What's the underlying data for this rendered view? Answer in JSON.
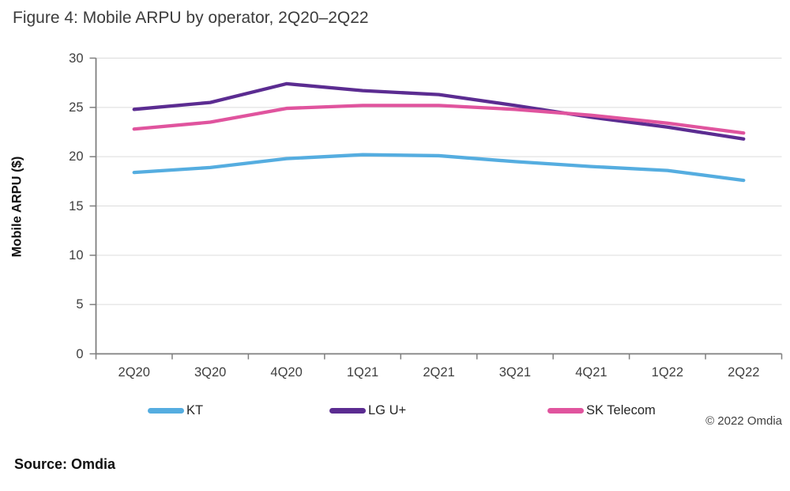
{
  "title": "Figure 4: Mobile ARPU by operator, 2Q20–2Q22",
  "source": "Source: Omdia",
  "copyright": "© 2022 Omdia",
  "colors": {
    "kt": "#55ADE0",
    "lg_uplus": "#5B2C91",
    "sk_telecom": "#E0549E",
    "grid": "#DCDCDC",
    "axis": "#7F7F7F",
    "tick_text": "#3f3f3f"
  },
  "chart_data": {
    "type": "line",
    "title": "Figure 4: Mobile ARPU by operator, 2Q20–2Q22",
    "categories": [
      "2Q20",
      "3Q20",
      "4Q20",
      "1Q21",
      "2Q21",
      "3Q21",
      "4Q21",
      "1Q22",
      "2Q22"
    ],
    "series": [
      {
        "name": "KT",
        "color": "#55ADE0",
        "values": [
          18.4,
          18.9,
          19.8,
          20.2,
          20.1,
          19.5,
          19.0,
          18.6,
          17.6
        ]
      },
      {
        "name": "LG U+",
        "color": "#5B2C91",
        "values": [
          24.8,
          25.5,
          27.4,
          26.7,
          26.3,
          25.2,
          24.0,
          23.0,
          21.8
        ]
      },
      {
        "name": "SK Telecom",
        "color": "#E0549E",
        "values": [
          22.8,
          23.5,
          24.9,
          25.2,
          25.2,
          24.8,
          24.2,
          23.4,
          22.4
        ]
      }
    ],
    "xlabel": "",
    "ylabel": "Mobile ARPU ($)",
    "ylim": [
      0,
      30
    ],
    "yticks": [
      0,
      5,
      10,
      15,
      20,
      25,
      30
    ],
    "grid": true,
    "legend_position": "bottom"
  }
}
